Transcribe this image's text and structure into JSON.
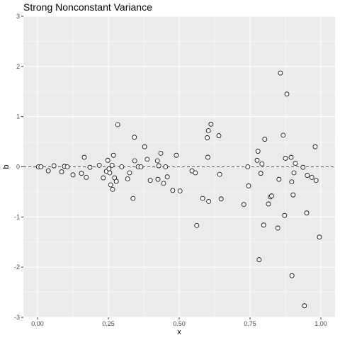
{
  "chart_data": {
    "type": "scatter",
    "title": "Strong Nonconstant Variance",
    "xlabel": "x",
    "ylabel": "b",
    "xlim": [
      -0.05,
      1.05
    ],
    "ylim": [
      -3,
      3
    ],
    "x_ticks": [
      0.0,
      0.25,
      0.5,
      0.75,
      1.0
    ],
    "x_tick_labels": [
      "0.00",
      "0.25",
      "0.50",
      "0.75",
      "1.00"
    ],
    "y_ticks": [
      -3,
      -2,
      -1,
      0,
      1,
      2,
      3
    ],
    "y_tick_labels": [
      "-3",
      "-2",
      "-1",
      "0",
      "1",
      "2",
      "3"
    ],
    "reference_line": {
      "y": 0,
      "style": "dashed"
    },
    "grid": true,
    "colors": {
      "panel": "#ebebeb",
      "grid": "#ffffff",
      "point_fill": "#ffffff",
      "point_stroke": "#000000",
      "refline": "#555555"
    },
    "points": [
      [
        0.003,
        0.0
      ],
      [
        0.012,
        0.0
      ],
      [
        0.038,
        -0.08
      ],
      [
        0.058,
        0.02
      ],
      [
        0.085,
        -0.1
      ],
      [
        0.095,
        0.01
      ],
      [
        0.105,
        0.0
      ],
      [
        0.125,
        -0.16
      ],
      [
        0.155,
        -0.13
      ],
      [
        0.165,
        0.19
      ],
      [
        0.172,
        -0.21
      ],
      [
        0.185,
        -0.01
      ],
      [
        0.218,
        0.03
      ],
      [
        0.232,
        -0.22
      ],
      [
        0.243,
        -0.09
      ],
      [
        0.248,
        0.13
      ],
      [
        0.252,
        -0.04
      ],
      [
        0.255,
        -0.12
      ],
      [
        0.258,
        -0.36
      ],
      [
        0.263,
        0.03
      ],
      [
        0.265,
        -0.45
      ],
      [
        0.268,
        0.23
      ],
      [
        0.272,
        -0.22
      ],
      [
        0.278,
        -0.29
      ],
      [
        0.283,
        0.84
      ],
      [
        0.297,
        0.0
      ],
      [
        0.318,
        -0.24
      ],
      [
        0.325,
        -0.12
      ],
      [
        0.337,
        -0.63
      ],
      [
        0.342,
        0.59
      ],
      [
        0.343,
        0.12
      ],
      [
        0.355,
        0.0
      ],
      [
        0.365,
        0.0
      ],
      [
        0.378,
        0.4
      ],
      [
        0.387,
        0.15
      ],
      [
        0.398,
        -0.27
      ],
      [
        0.423,
        0.12
      ],
      [
        0.425,
        -0.25
      ],
      [
        0.428,
        0.02
      ],
      [
        0.435,
        0.27
      ],
      [
        0.445,
        -0.33
      ],
      [
        0.452,
        0.0
      ],
      [
        0.458,
        -0.2
      ],
      [
        0.477,
        -0.47
      ],
      [
        0.49,
        0.23
      ],
      [
        0.503,
        -0.48
      ],
      [
        0.545,
        -0.08
      ],
      [
        0.557,
        -0.12
      ],
      [
        0.562,
        -1.17
      ],
      [
        0.583,
        -0.63
      ],
      [
        0.599,
        0.58
      ],
      [
        0.601,
        0.19
      ],
      [
        0.603,
        0.72
      ],
      [
        0.604,
        -0.69
      ],
      [
        0.612,
        0.85
      ],
      [
        0.64,
        0.62
      ],
      [
        0.643,
        -0.15
      ],
      [
        0.648,
        -0.64
      ],
      [
        0.728,
        -0.75
      ],
      [
        0.742,
        0.0
      ],
      [
        0.745,
        -0.38
      ],
      [
        0.775,
        0.13
      ],
      [
        0.778,
        0.31
      ],
      [
        0.782,
        -1.85
      ],
      [
        0.788,
        -0.13
      ],
      [
        0.792,
        0.06
      ],
      [
        0.798,
        -1.16
      ],
      [
        0.802,
        0.55
      ],
      [
        0.815,
        -0.74
      ],
      [
        0.822,
        -0.6
      ],
      [
        0.826,
        -0.58
      ],
      [
        0.848,
        -1.22
      ],
      [
        0.852,
        -0.25
      ],
      [
        0.857,
        1.87
      ],
      [
        0.867,
        0.63
      ],
      [
        0.872,
        -0.97
      ],
      [
        0.875,
        0.17
      ],
      [
        0.88,
        1.45
      ],
      [
        0.895,
        0.19
      ],
      [
        0.897,
        -0.3
      ],
      [
        0.898,
        -2.17
      ],
      [
        0.902,
        -0.56
      ],
      [
        0.905,
        -0.12
      ],
      [
        0.91,
        0.07
      ],
      [
        0.937,
        -0.01
      ],
      [
        0.942,
        -2.77
      ],
      [
        0.95,
        -0.92
      ],
      [
        0.952,
        -0.17
      ],
      [
        0.968,
        -0.21
      ],
      [
        0.98,
        0.4
      ],
      [
        0.983,
        -0.27
      ],
      [
        0.995,
        -1.4
      ]
    ]
  }
}
